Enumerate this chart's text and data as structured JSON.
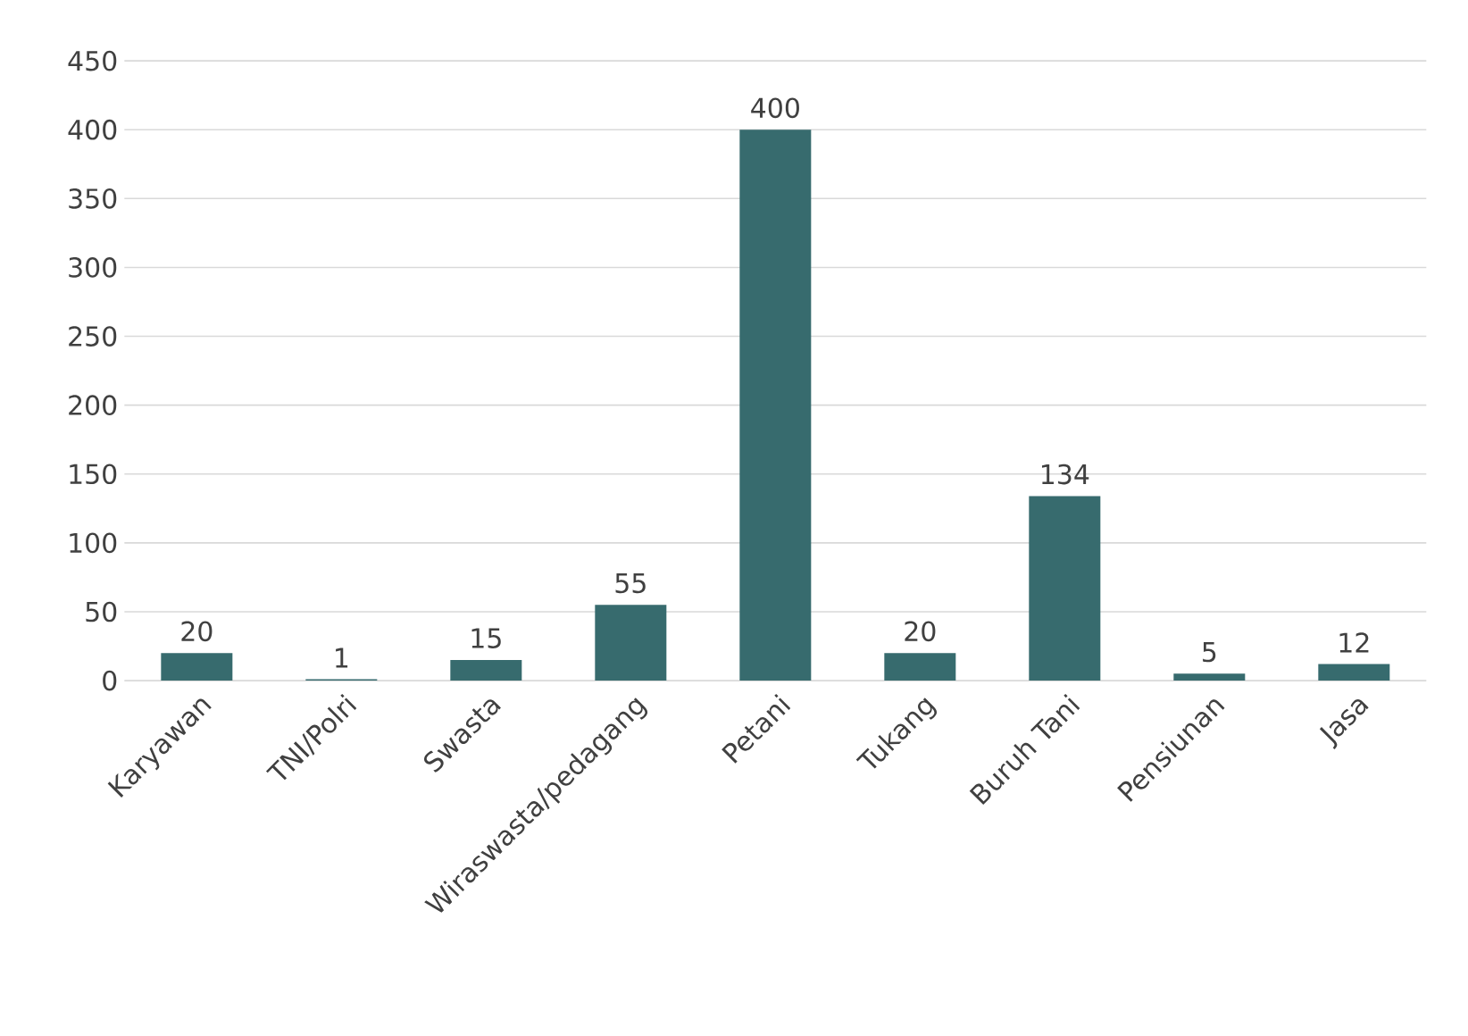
{
  "chart_data": {
    "type": "bar",
    "categories": [
      "Karyawan",
      "TNI/Polri",
      "Swasta",
      "Wiraswasta/pedagang",
      "Petani",
      "Tukang",
      "Buruh Tani",
      "Pensiunan",
      "Jasa"
    ],
    "values": [
      20,
      1,
      15,
      55,
      400,
      20,
      134,
      5,
      12
    ],
    "color": "#376b6e",
    "ylim": [
      0,
      450
    ],
    "yticks": [
      0,
      50,
      100,
      150,
      200,
      250,
      300,
      350,
      400,
      450
    ],
    "grid": "y",
    "data_labels": true
  }
}
